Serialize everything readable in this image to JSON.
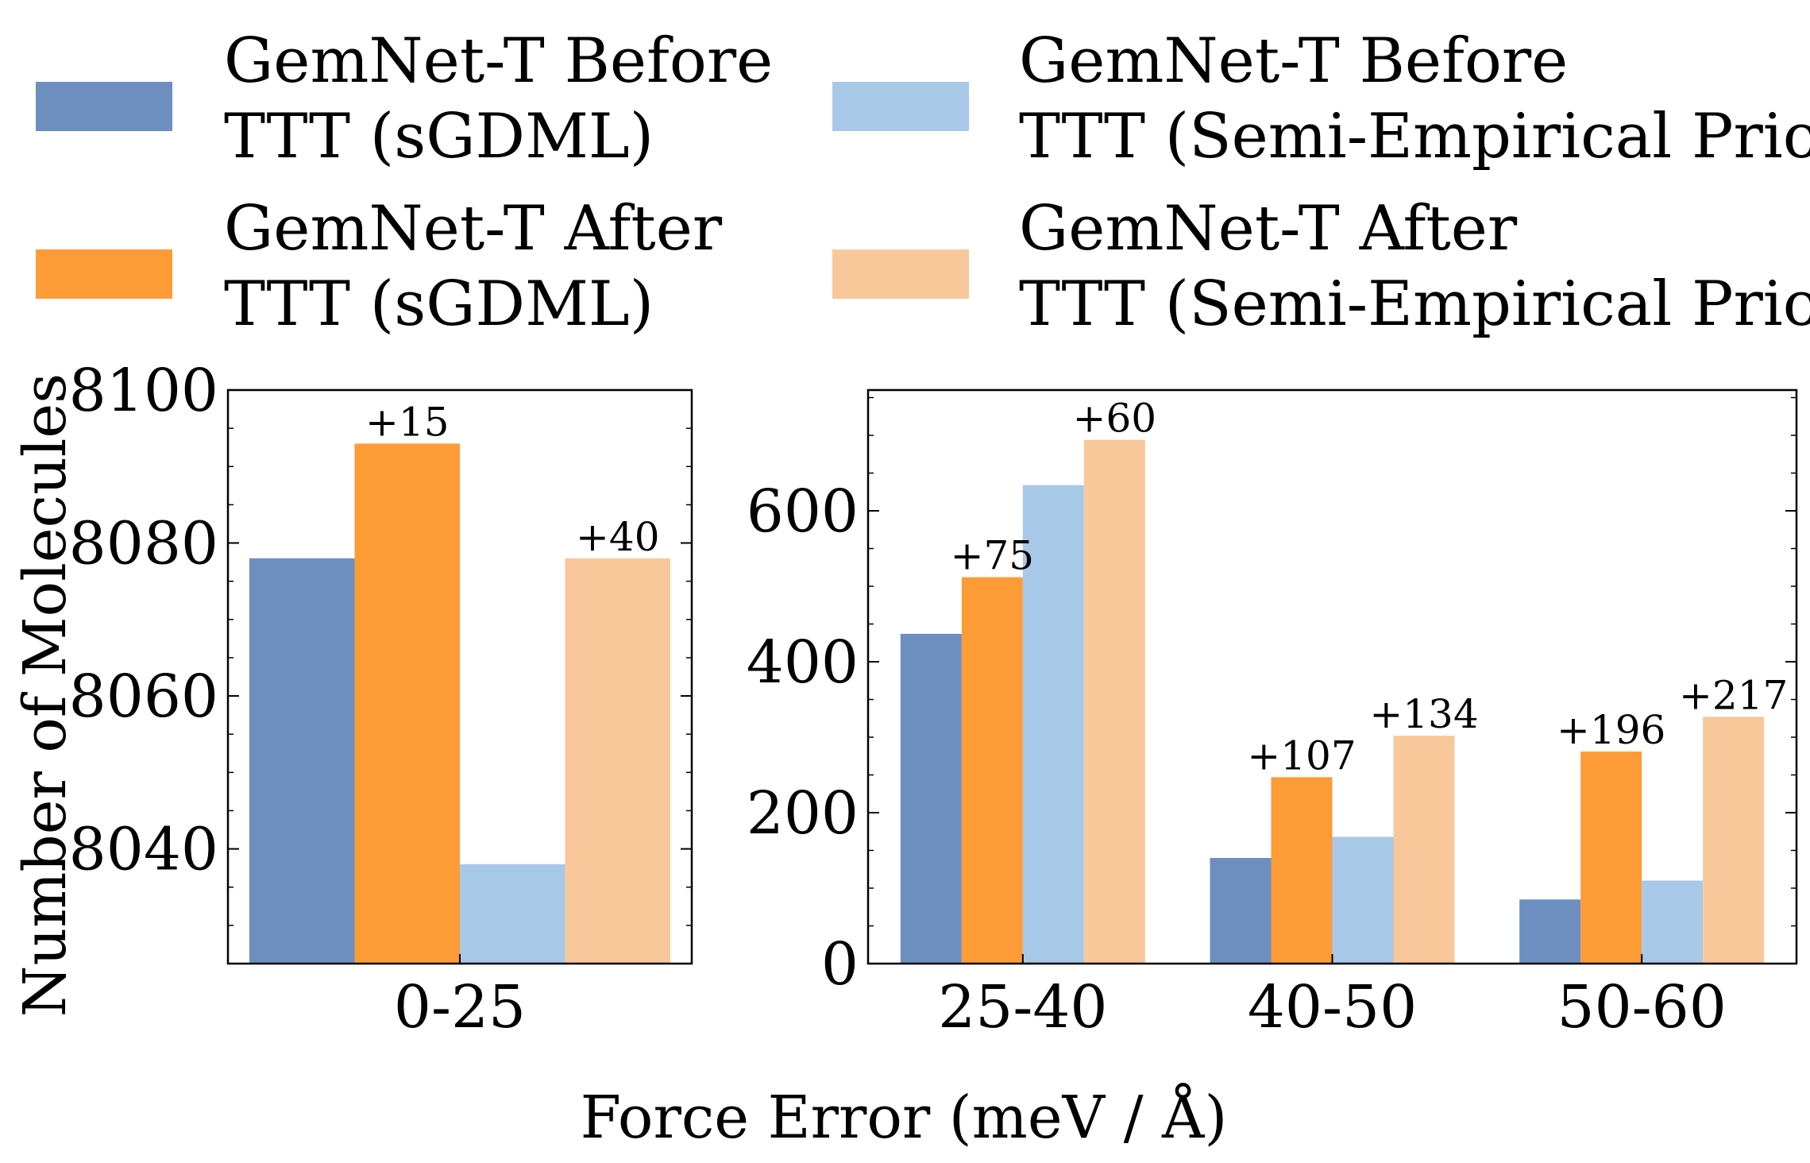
{
  "colors": {
    "before_sgdml": "#6d8fbf",
    "after_sgdml": "#fd9b37",
    "before_semi": "#a8c8e8",
    "after_semi": "#f8c89a"
  },
  "legend": [
    {
      "key": "before_sgdml",
      "line1": "GemNet-T Before",
      "line2": "TTT (sGDML)"
    },
    {
      "key": "before_semi",
      "line1": "GemNet-T Before",
      "line2": "TTT (Semi-Empirical Prior)"
    },
    {
      "key": "after_sgdml",
      "line1": "GemNet-T After",
      "line2": "TTT (sGDML)"
    },
    {
      "key": "after_semi",
      "line1": "GemNet-T After",
      "line2": "TTT (Semi-Empirical Prior)"
    }
  ],
  "axis_titles": {
    "ylabel": "Number of Molecules",
    "xlabel": "Force Error (meV / Å)"
  },
  "chart_data": [
    {
      "type": "bar",
      "categories": [
        "0-25"
      ],
      "ylim": [
        8025,
        8100
      ],
      "yticks": [
        8040,
        8060,
        8080,
        8100
      ],
      "series": [
        {
          "name": "GemNet-T Before TTT (sGDML)",
          "key": "before_sgdml",
          "values": [
            8078
          ]
        },
        {
          "name": "GemNet-T After TTT (sGDML)",
          "key": "after_sgdml",
          "values": [
            8093
          ]
        },
        {
          "name": "GemNet-T Before TTT (Semi-Empirical Prior)",
          "key": "before_semi",
          "values": [
            8038
          ]
        },
        {
          "name": "GemNet-T After TTT (Semi-Empirical Prior)",
          "key": "after_semi",
          "values": [
            8078
          ]
        }
      ],
      "annotations": [
        {
          "category": "0-25",
          "series": "after_sgdml",
          "text": "+15"
        },
        {
          "category": "0-25",
          "series": "after_semi",
          "text": "+40"
        }
      ]
    },
    {
      "type": "bar",
      "categories": [
        "25-40",
        "40-50",
        "50-60"
      ],
      "ylim": [
        0,
        760
      ],
      "yticks": [
        0,
        200,
        400,
        600
      ],
      "series": [
        {
          "name": "GemNet-T Before TTT (sGDML)",
          "key": "before_sgdml",
          "values": [
            437,
            140,
            85
          ]
        },
        {
          "name": "GemNet-T After TTT (sGDML)",
          "key": "after_sgdml",
          "values": [
            512,
            247,
            281
          ]
        },
        {
          "name": "GemNet-T Before TTT (Semi-Empirical Prior)",
          "key": "before_semi",
          "values": [
            634,
            168,
            110
          ]
        },
        {
          "name": "GemNet-T After TTT (Semi-Empirical Prior)",
          "key": "after_semi",
          "values": [
            694,
            302,
            327
          ]
        }
      ],
      "annotations": [
        {
          "category": "25-40",
          "series": "after_sgdml",
          "text": "+75"
        },
        {
          "category": "25-40",
          "series": "after_semi",
          "text": "+60"
        },
        {
          "category": "40-50",
          "series": "after_sgdml",
          "text": "+107"
        },
        {
          "category": "40-50",
          "series": "after_semi",
          "text": "+134"
        },
        {
          "category": "50-60",
          "series": "after_sgdml",
          "text": "+196"
        },
        {
          "category": "50-60",
          "series": "after_semi",
          "text": "+217"
        }
      ]
    }
  ]
}
